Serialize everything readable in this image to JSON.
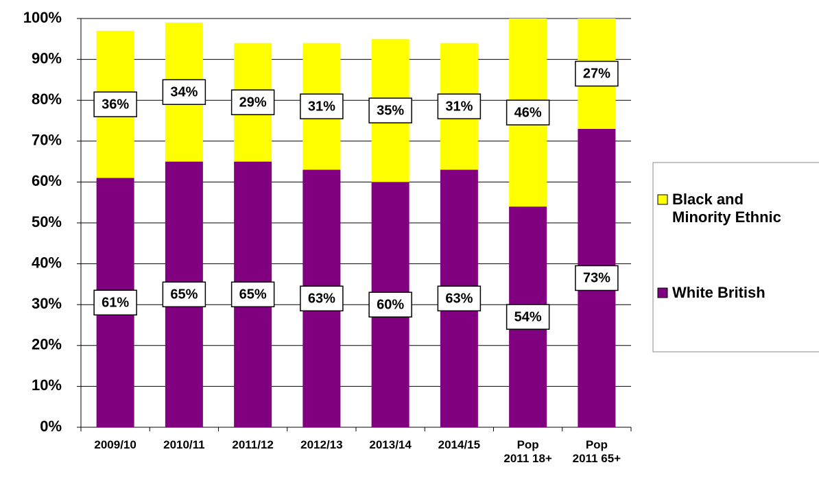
{
  "chart_data": {
    "type": "stacked_bar",
    "categories": [
      "2009/10",
      "2010/11",
      "2011/12",
      "2012/13",
      "2013/14",
      "2014/15",
      "Pop\n2011 18+",
      "Pop\n2011 65+"
    ],
    "series": [
      {
        "name": "White British",
        "color": "#800080",
        "values": [
          61,
          65,
          65,
          63,
          60,
          63,
          54,
          73
        ],
        "value_labels": [
          "61%",
          "65%",
          "65%",
          "63%",
          "60%",
          "63%",
          "54%",
          "73%"
        ]
      },
      {
        "name": "Black and\nMinority Ethnic",
        "color": "#ffff00",
        "values": [
          36,
          34,
          29,
          31,
          35,
          31,
          46,
          27
        ],
        "value_labels": [
          "36%",
          "34%",
          "29%",
          "31%",
          "35%",
          "31%",
          "46%",
          "27%"
        ]
      }
    ],
    "ylim": [
      0,
      100
    ],
    "yticks": [
      {
        "value": 0,
        "label": "0%"
      },
      {
        "value": 10,
        "label": "10%"
      },
      {
        "value": 20,
        "label": "20%"
      },
      {
        "value": 30,
        "label": "30%"
      },
      {
        "value": 40,
        "label": "40%"
      },
      {
        "value": 50,
        "label": "50%"
      },
      {
        "value": 60,
        "label": "60%"
      },
      {
        "value": 70,
        "label": "70%"
      },
      {
        "value": 80,
        "label": "80%"
      },
      {
        "value": 90,
        "label": "90%"
      },
      {
        "value": 100,
        "label": "100%"
      }
    ],
    "grid": true
  }
}
